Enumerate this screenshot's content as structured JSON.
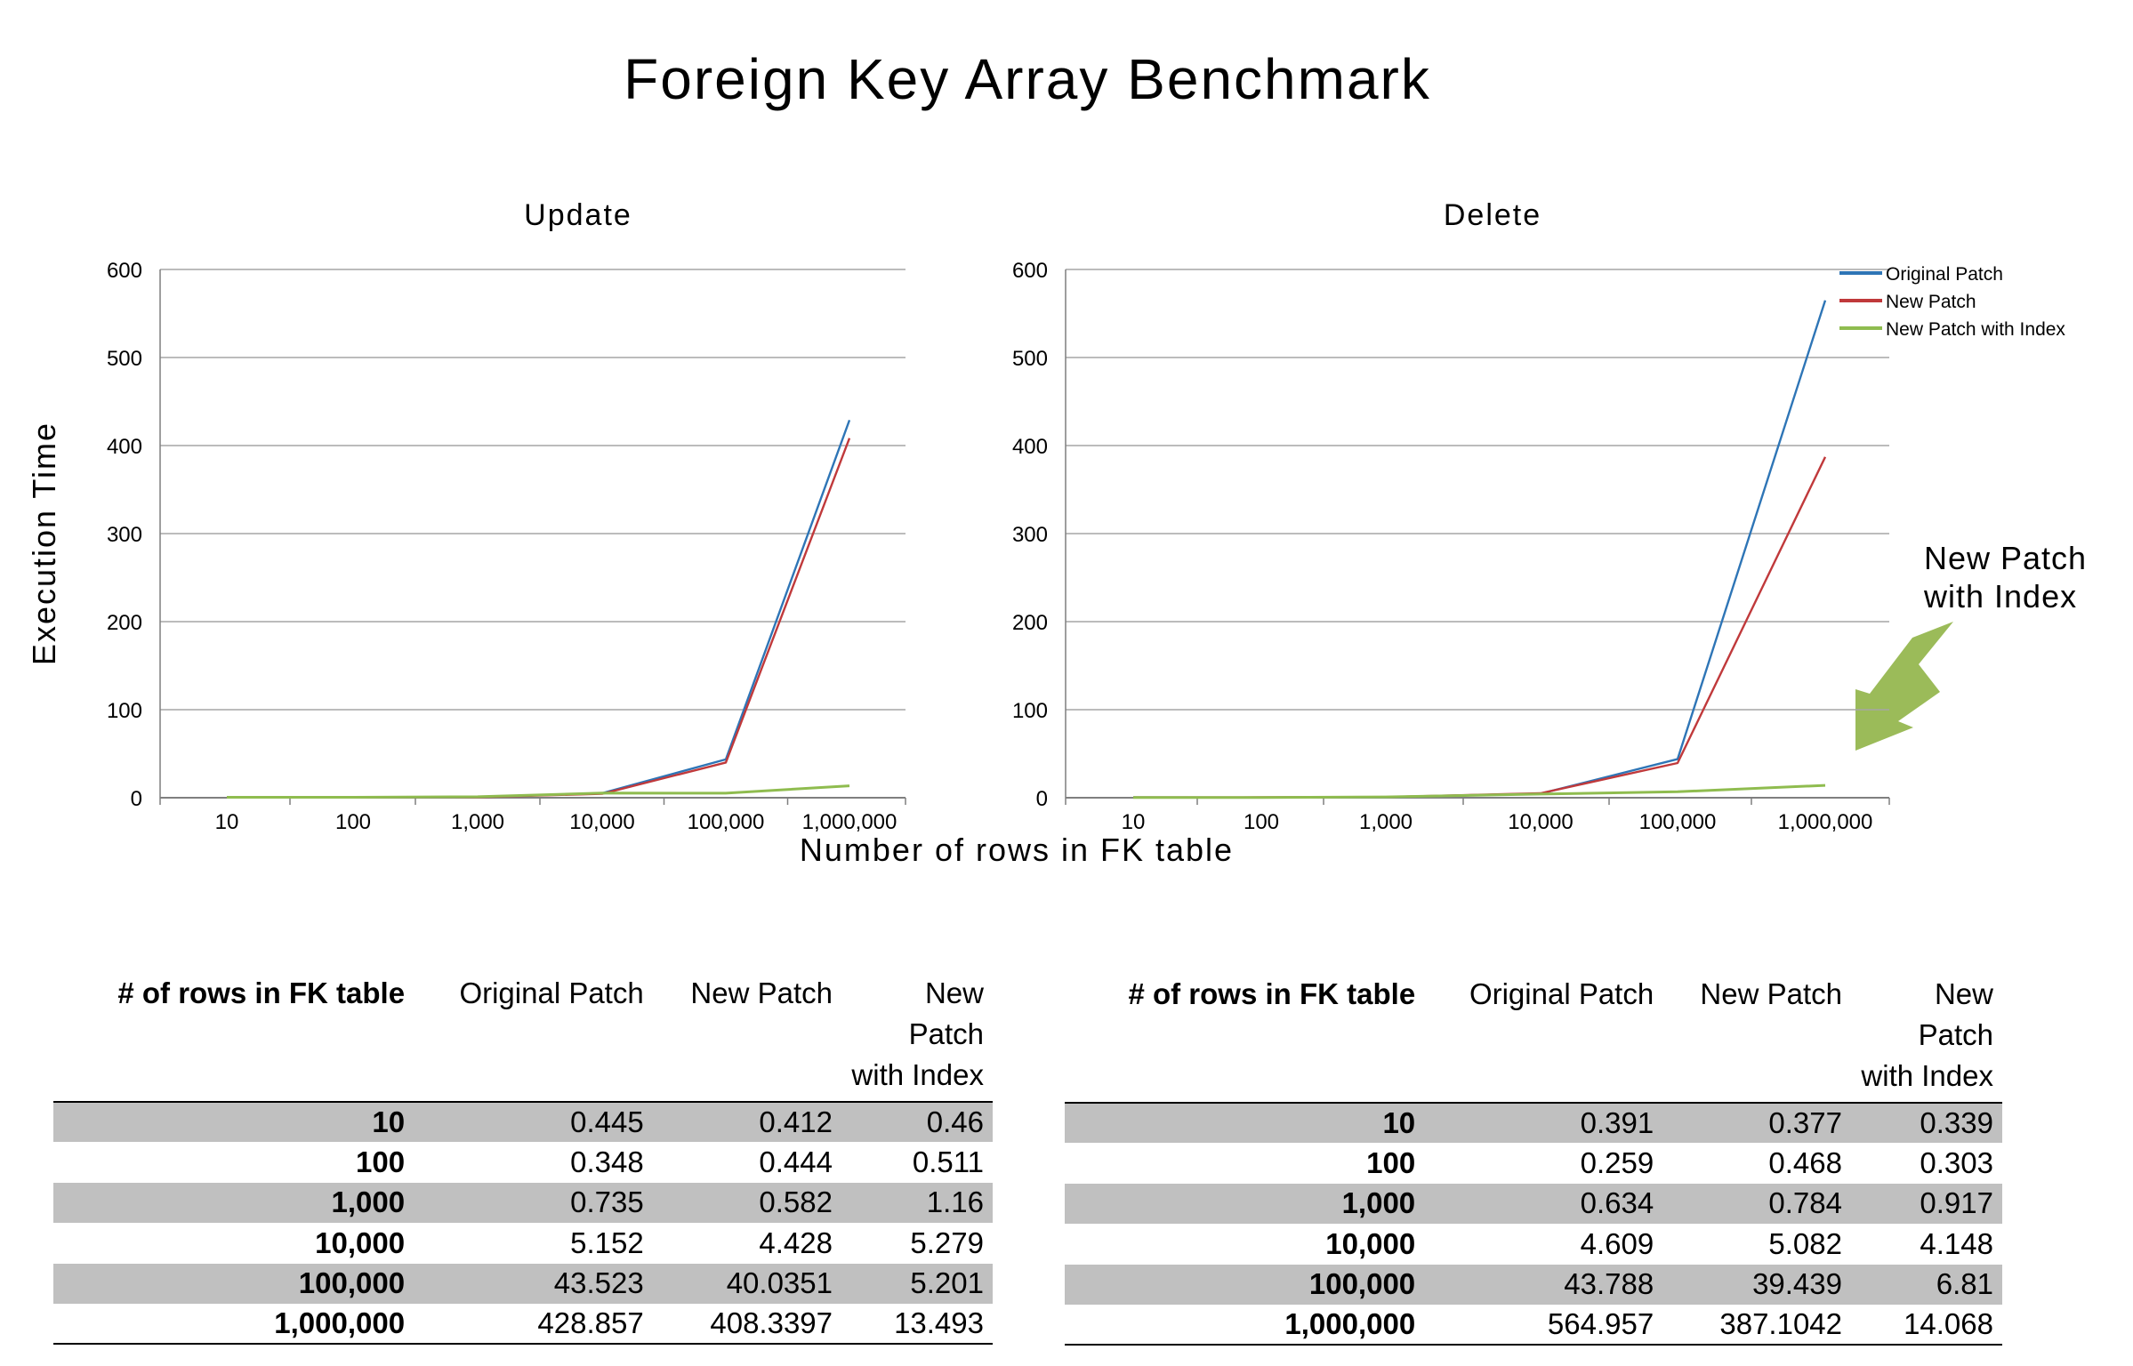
{
  "page": {
    "title": "Foreign Key Array Benchmark"
  },
  "shared": {
    "ylabel": "Execution Time",
    "xlabel": "Number of rows in FK table",
    "annotation": [
      "New Patch",
      "with Index"
    ]
  },
  "colors": {
    "original": "#2e75b6",
    "new": "#c0393b",
    "index": "#8fbc4f",
    "arrow": "#9bbb59",
    "grid": "#a6a6a6"
  },
  "chart_data": [
    {
      "type": "line",
      "title": "Update",
      "categories": [
        "10",
        "100",
        "1,000",
        "10,000",
        "100,000",
        "1,000,000"
      ],
      "ylim": [
        0,
        600
      ],
      "yticks": [
        "0",
        "100",
        "200",
        "300",
        "400",
        "500",
        "600"
      ],
      "grid": true,
      "series": [
        {
          "name": "Original Patch",
          "values": [
            0.445,
            0.348,
            0.735,
            5.152,
            43.523,
            428.857
          ]
        },
        {
          "name": "New Patch",
          "values": [
            0.412,
            0.444,
            0.582,
            4.428,
            40.0351,
            408.3397
          ]
        },
        {
          "name": "New Patch with Index",
          "values": [
            0.46,
            0.511,
            1.16,
            5.279,
            5.201,
            13.493
          ]
        }
      ]
    },
    {
      "type": "line",
      "title": "Delete",
      "categories": [
        "10",
        "100",
        "1,000",
        "10,000",
        "100,000",
        "1,000,000"
      ],
      "ylim": [
        0,
        600
      ],
      "yticks": [
        "0",
        "100",
        "200",
        "300",
        "400",
        "500",
        "600"
      ],
      "grid": true,
      "legend": "top-right",
      "series": [
        {
          "name": "Original Patch",
          "values": [
            0.391,
            0.259,
            0.634,
            4.609,
            43.788,
            564.957
          ]
        },
        {
          "name": "New Patch",
          "values": [
            0.377,
            0.468,
            0.784,
            5.082,
            39.439,
            387.1042
          ]
        },
        {
          "name": "New Patch with Index",
          "values": [
            0.339,
            0.303,
            0.917,
            4.148,
            6.81,
            14.068
          ]
        }
      ]
    }
  ],
  "tables": [
    {
      "headers": [
        "# of rows in FK table",
        "Original Patch",
        "New Patch",
        "New Patch with Index"
      ],
      "rows": [
        [
          "10",
          "0.445",
          "0.412",
          "0.46"
        ],
        [
          "100",
          "0.348",
          "0.444",
          "0.511"
        ],
        [
          "1,000",
          "0.735",
          "0.582",
          "1.16"
        ],
        [
          "10,000",
          "5.152",
          "4.428",
          "5.279"
        ],
        [
          "100,000",
          "43.523",
          "40.0351",
          "5.201"
        ],
        [
          "1,000,000",
          "428.857",
          "408.3397",
          "13.493"
        ]
      ]
    },
    {
      "headers": [
        "# of rows in FK table",
        "Original Patch",
        "New Patch",
        "New Patch with Index"
      ],
      "rows": [
        [
          "10",
          "0.391",
          "0.377",
          "0.339"
        ],
        [
          "100",
          "0.259",
          "0.468",
          "0.303"
        ],
        [
          "1,000",
          "0.634",
          "0.784",
          "0.917"
        ],
        [
          "10,000",
          "4.609",
          "5.082",
          "4.148"
        ],
        [
          "100,000",
          "43.788",
          "39.439",
          "6.81"
        ],
        [
          "1,000,000",
          "564.957",
          "387.1042",
          "14.068"
        ]
      ]
    }
  ]
}
